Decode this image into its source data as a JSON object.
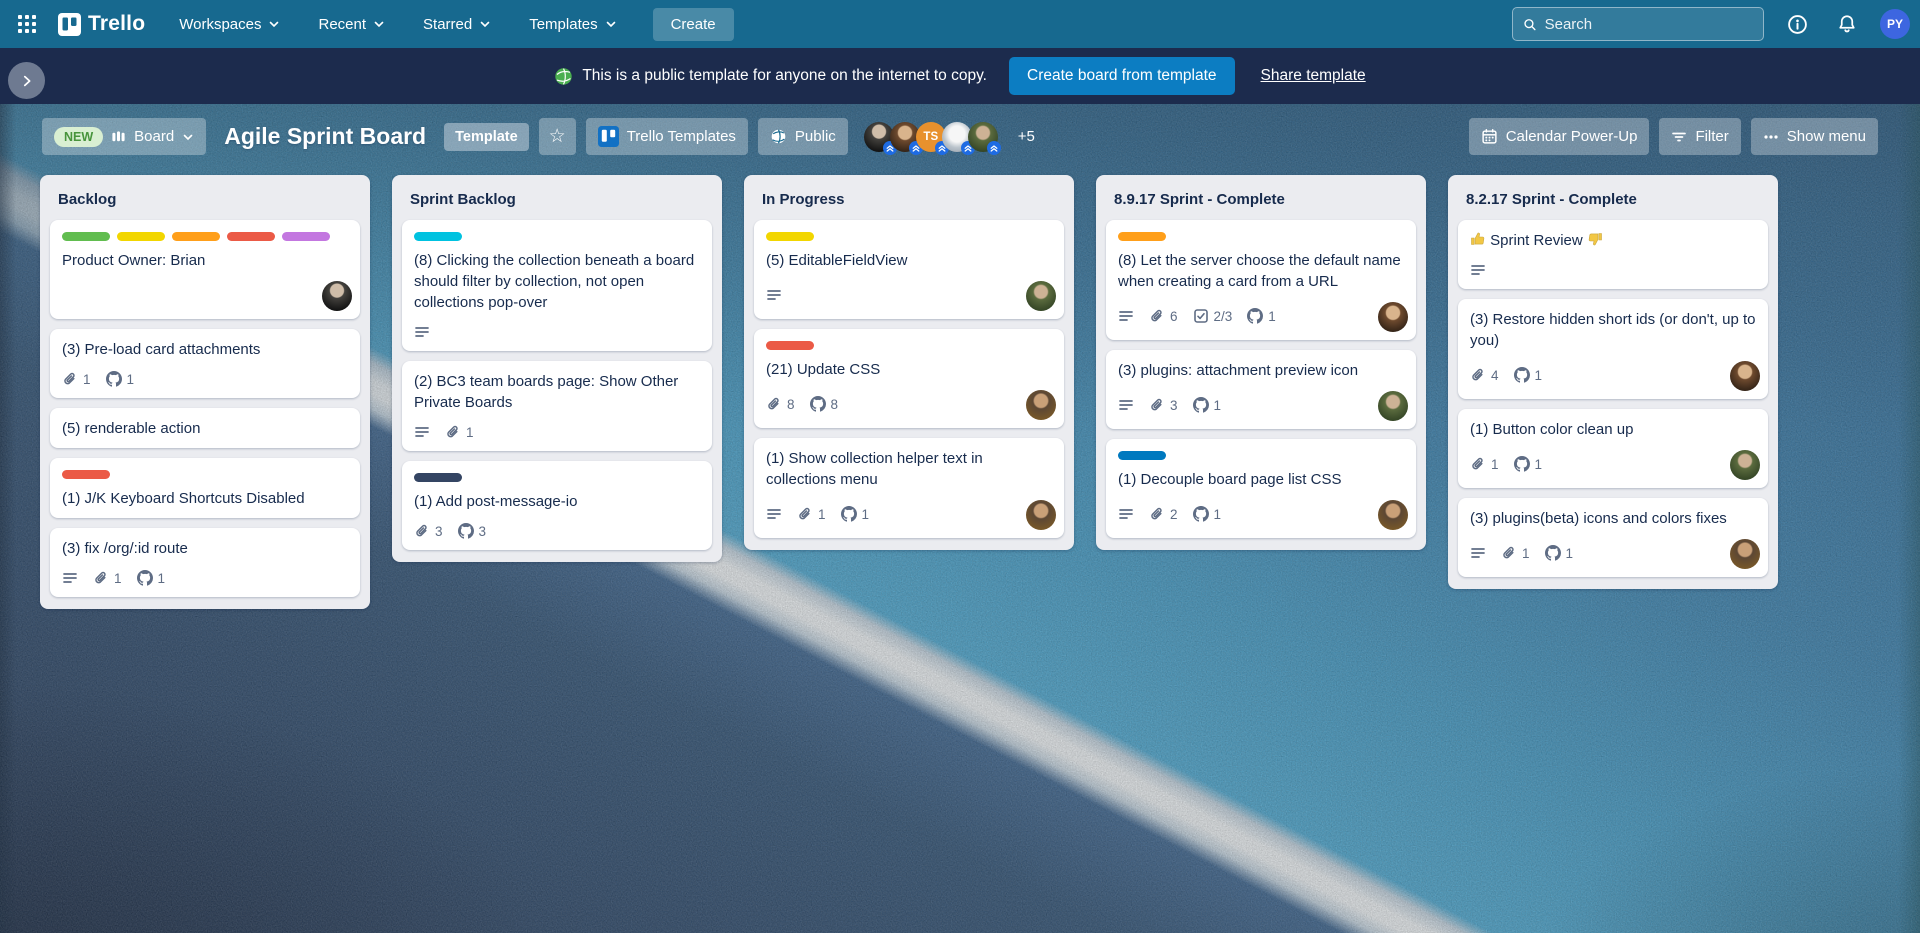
{
  "topbar": {
    "logo": "Trello",
    "menus": [
      "Workspaces",
      "Recent",
      "Starred",
      "Templates"
    ],
    "create_label": "Create",
    "search_placeholder": "Search",
    "user_initials": "PY"
  },
  "banner": {
    "message": "This is a public template for anyone on the internet to copy.",
    "create_button": "Create board from template",
    "share_link": "Share template"
  },
  "board_header": {
    "new_badge": "NEW",
    "views_label": "Board",
    "title": "Agile Sprint Board",
    "template_badge": "Template",
    "templates_button": "Trello Templates",
    "visibility": "Public",
    "members": [
      {
        "style": "av1",
        "initials": ""
      },
      {
        "style": "av2",
        "initials": ""
      },
      {
        "style": "av3",
        "initials": "TS"
      },
      {
        "style": "av4",
        "initials": ""
      },
      {
        "style": "av5",
        "initials": ""
      }
    ],
    "overflow_count": "+5",
    "calendar_button": "Calendar Power-Up",
    "filter_button": "Filter",
    "menu_button": "Show menu"
  },
  "lists": [
    {
      "title": "Backlog",
      "cards": [
        {
          "labels": [
            "green",
            "yellow",
            "orange",
            "red",
            "purple"
          ],
          "title": "Product Owner: Brian",
          "avatar": "av1"
        },
        {
          "title": "(3) Pre-load card attachments",
          "attach": 1,
          "github": 1
        },
        {
          "title": "(5) renderable action"
        },
        {
          "labels": [
            "red"
          ],
          "title": "(1) J/K Keyboard Shortcuts Disabled"
        },
        {
          "title": "(3) fix /org/:id route",
          "desc": true,
          "attach": 1,
          "github": 1
        }
      ]
    },
    {
      "title": "Sprint Backlog",
      "cards": [
        {
          "labels": [
            "sky"
          ],
          "title": "(8) Clicking the collection beneath a board should filter by collection, not open collections pop-over",
          "desc": true
        },
        {
          "title": "(2) BC3 team boards page: Show Other Private Boards",
          "desc": true,
          "attach": 1
        },
        {
          "labels": [
            "navy"
          ],
          "title": "(1) Add post-message-io",
          "attach": 3,
          "github": 3
        }
      ]
    },
    {
      "title": "In Progress",
      "cards": [
        {
          "labels": [
            "yellow"
          ],
          "title": "(5) EditableFieldView",
          "desc": true,
          "avatar": "av5"
        },
        {
          "labels": [
            "red"
          ],
          "title": "(21) Update CSS",
          "attach": 8,
          "github": 8,
          "avatar": "av6"
        },
        {
          "title": "(1) Show collection helper text in collections menu",
          "desc": true,
          "attach": 1,
          "github": 1,
          "avatar": "av6"
        }
      ]
    },
    {
      "title": "8.9.17 Sprint - Complete",
      "cards": [
        {
          "labels": [
            "orange"
          ],
          "title": "(8) Let the server choose the default name when creating a card from a URL",
          "desc": true,
          "attach": 6,
          "check": "2/3",
          "github": 1,
          "avatar": "av2"
        },
        {
          "title": "(3) plugins: attachment preview icon",
          "desc": true,
          "attach": 3,
          "github": 1,
          "avatar": "av5"
        },
        {
          "labels": [
            "blue"
          ],
          "title": "(1) Decouple board page list CSS",
          "desc": true,
          "attach": 2,
          "github": 1,
          "avatar": "av6"
        }
      ]
    },
    {
      "title": "8.2.17 Sprint - Complete",
      "cards": [
        {
          "title": "👍 Sprint Review 👎",
          "desc": true
        },
        {
          "title": "(3) Restore hidden short ids (or don't, up to you)",
          "attach": 4,
          "github": 1,
          "avatar": "av2"
        },
        {
          "title": "(1) Button color clean up",
          "attach": 1,
          "github": 1,
          "avatar": "av5"
        },
        {
          "title": "(3) plugins(beta) icons and colors fixes",
          "desc": true,
          "attach": 1,
          "github": 1,
          "avatar": "av6"
        }
      ]
    }
  ],
  "colors": {
    "topbar_bg": "#17698f",
    "banner_bg": "#1c2b4d",
    "primary_button": "#0c7dc2",
    "user_avatar": "#3d66e0",
    "member_badge": "#1e6be3",
    "list_bg": "#ebecf0",
    "card_text": "#172b4d",
    "labels": {
      "green": "#61bd4f",
      "yellow": "#f2d600",
      "orange": "#ff9f1a",
      "red": "#eb5a46",
      "purple": "#c377e0",
      "sky": "#00c2e0",
      "navy": "#344563",
      "blue": "#0079bf"
    }
  }
}
